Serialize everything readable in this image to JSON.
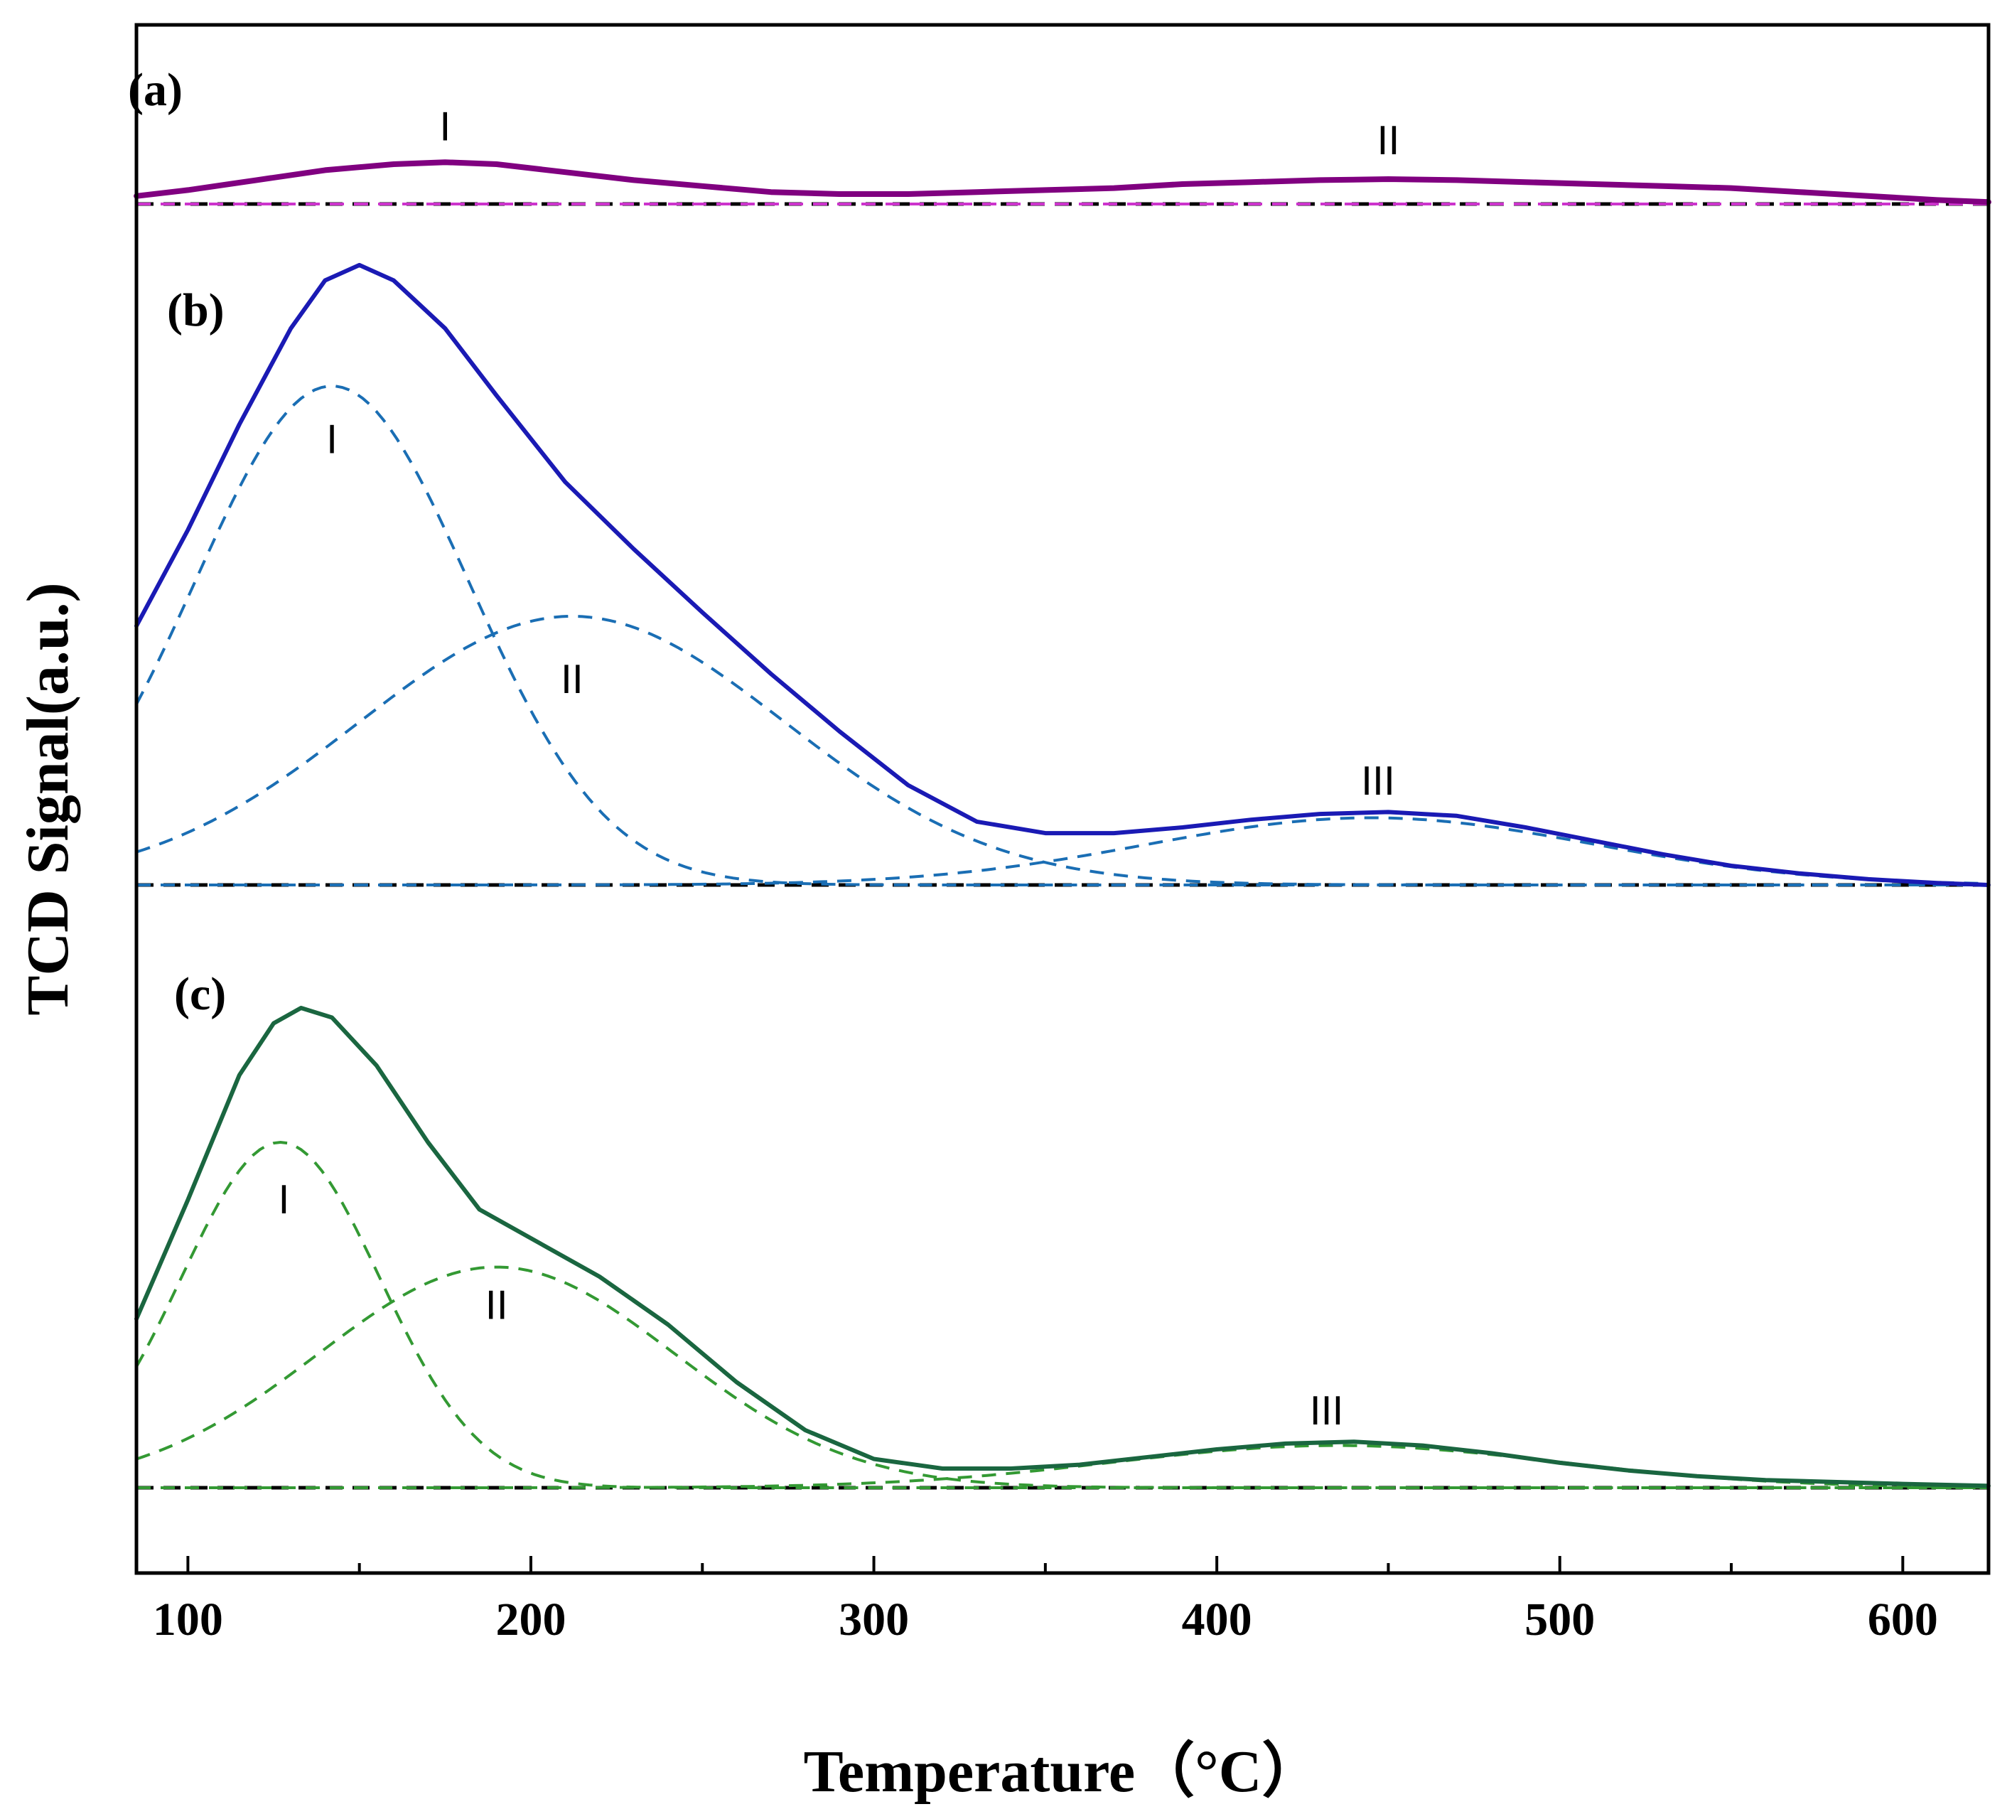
{
  "chart_data": {
    "type": "line",
    "title": "",
    "xlabel": "Temperature（°C）",
    "ylabel": "TCD Signal(a.u.)",
    "xlim": [
      85,
      625
    ],
    "x_ticks": [
      100,
      200,
      300,
      400,
      500,
      600
    ],
    "grid": false,
    "panels": [
      {
        "label": "(a)",
        "baseline": {
          "style": "dashed",
          "color": "#000000"
        },
        "y_scale": 1.0,
        "total": {
          "color": "#800080",
          "width": 8,
          "points": [
            [
              85,
              0.04
            ],
            [
              100,
              0.07
            ],
            [
              120,
              0.12
            ],
            [
              140,
              0.17
            ],
            [
              160,
              0.2
            ],
            [
              175,
              0.21
            ],
            [
              190,
              0.2
            ],
            [
              210,
              0.16
            ],
            [
              230,
              0.12
            ],
            [
              250,
              0.09
            ],
            [
              270,
              0.06
            ],
            [
              290,
              0.05
            ],
            [
              310,
              0.05
            ],
            [
              330,
              0.06
            ],
            [
              350,
              0.07
            ],
            [
              370,
              0.08
            ],
            [
              390,
              0.1
            ],
            [
              410,
              0.11
            ],
            [
              430,
              0.12
            ],
            [
              450,
              0.125
            ],
            [
              470,
              0.12
            ],
            [
              490,
              0.11
            ],
            [
              510,
              0.1
            ],
            [
              530,
              0.09
            ],
            [
              550,
              0.08
            ],
            [
              570,
              0.06
            ],
            [
              590,
              0.04
            ],
            [
              610,
              0.02
            ],
            [
              625,
              0.01
            ]
          ]
        },
        "components": [
          {
            "name": "I",
            "center": 175,
            "amplitude": 0.0,
            "sigma": 55,
            "color": "#cc33cc"
          },
          {
            "name": "II",
            "center": 450,
            "amplitude": 0.0,
            "sigma": 80,
            "color": "#cc33cc"
          }
        ],
        "peak_labels": [
          {
            "text": "I",
            "x": 175,
            "y": 0.32
          },
          {
            "text": "II",
            "x": 450,
            "y": 0.25
          }
        ]
      },
      {
        "label": "(b)",
        "baseline": {
          "style": "dashed",
          "color": "#000000"
        },
        "y_scale": 1.0,
        "total": {
          "color": "#1a1ab4",
          "width": 6,
          "points": [
            [
              85,
              1.35
            ],
            [
              100,
              1.85
            ],
            [
              115,
              2.4
            ],
            [
              130,
              2.9
            ],
            [
              140,
              3.15
            ],
            [
              150,
              3.23
            ],
            [
              160,
              3.15
            ],
            [
              175,
              2.9
            ],
            [
              190,
              2.55
            ],
            [
              210,
              2.1
            ],
            [
              230,
              1.75
            ],
            [
              250,
              1.42
            ],
            [
              270,
              1.1
            ],
            [
              290,
              0.8
            ],
            [
              310,
              0.52
            ],
            [
              330,
              0.33
            ],
            [
              350,
              0.27
            ],
            [
              370,
              0.27
            ],
            [
              390,
              0.3
            ],
            [
              410,
              0.34
            ],
            [
              430,
              0.37
            ],
            [
              450,
              0.38
            ],
            [
              470,
              0.36
            ],
            [
              490,
              0.3
            ],
            [
              510,
              0.23
            ],
            [
              530,
              0.16
            ],
            [
              550,
              0.1
            ],
            [
              570,
              0.06
            ],
            [
              590,
              0.03
            ],
            [
              610,
              0.01
            ],
            [
              625,
              0.0
            ]
          ]
        },
        "components": [
          {
            "name": "I",
            "center": 142,
            "amplitude": 2.6,
            "sigma": 40,
            "color": "#1a6eb4"
          },
          {
            "name": "II",
            "center": 212,
            "amplitude": 1.4,
            "sigma": 62,
            "color": "#1a6eb4"
          },
          {
            "name": "III",
            "center": 445,
            "amplitude": 0.35,
            "sigma": 65,
            "color": "#1a6eb4"
          }
        ],
        "peak_labels": [
          {
            "text": "I",
            "x": 142,
            "y": 2.25
          },
          {
            "text": "II",
            "x": 212,
            "y": 1.0
          },
          {
            "text": "III",
            "x": 447,
            "y": 0.47
          }
        ]
      },
      {
        "label": "(c)",
        "baseline": {
          "style": "dashed",
          "color": "#000000"
        },
        "y_scale": 1.0,
        "total": {
          "color": "#1a6640",
          "width": 6,
          "points": [
            [
              85,
              0.88
            ],
            [
              100,
              1.5
            ],
            [
              115,
              2.15
            ],
            [
              125,
              2.42
            ],
            [
              133,
              2.5
            ],
            [
              142,
              2.45
            ],
            [
              155,
              2.2
            ],
            [
              170,
              1.8
            ],
            [
              185,
              1.45
            ],
            [
              200,
              1.3
            ],
            [
              220,
              1.1
            ],
            [
              240,
              0.85
            ],
            [
              260,
              0.55
            ],
            [
              280,
              0.3
            ],
            [
              300,
              0.15
            ],
            [
              320,
              0.1
            ],
            [
              340,
              0.1
            ],
            [
              360,
              0.12
            ],
            [
              380,
              0.16
            ],
            [
              400,
              0.2
            ],
            [
              420,
              0.23
            ],
            [
              440,
              0.24
            ],
            [
              460,
              0.22
            ],
            [
              480,
              0.18
            ],
            [
              500,
              0.13
            ],
            [
              520,
              0.09
            ],
            [
              540,
              0.06
            ],
            [
              560,
              0.04
            ],
            [
              580,
              0.03
            ],
            [
              600,
              0.02
            ],
            [
              625,
              0.01
            ]
          ]
        },
        "components": [
          {
            "name": "I",
            "center": 127,
            "amplitude": 1.8,
            "sigma": 29,
            "color": "#339933"
          },
          {
            "name": "II",
            "center": 190,
            "amplitude": 1.15,
            "sigma": 52,
            "color": "#339933"
          },
          {
            "name": "III",
            "center": 435,
            "amplitude": 0.22,
            "sigma": 65,
            "color": "#339933"
          }
        ],
        "peak_labels": [
          {
            "text": "I",
            "x": 128,
            "y": 1.43
          },
          {
            "text": "II",
            "x": 190,
            "y": 0.88
          },
          {
            "text": "III",
            "x": 432,
            "y": 0.33
          }
        ]
      }
    ]
  }
}
